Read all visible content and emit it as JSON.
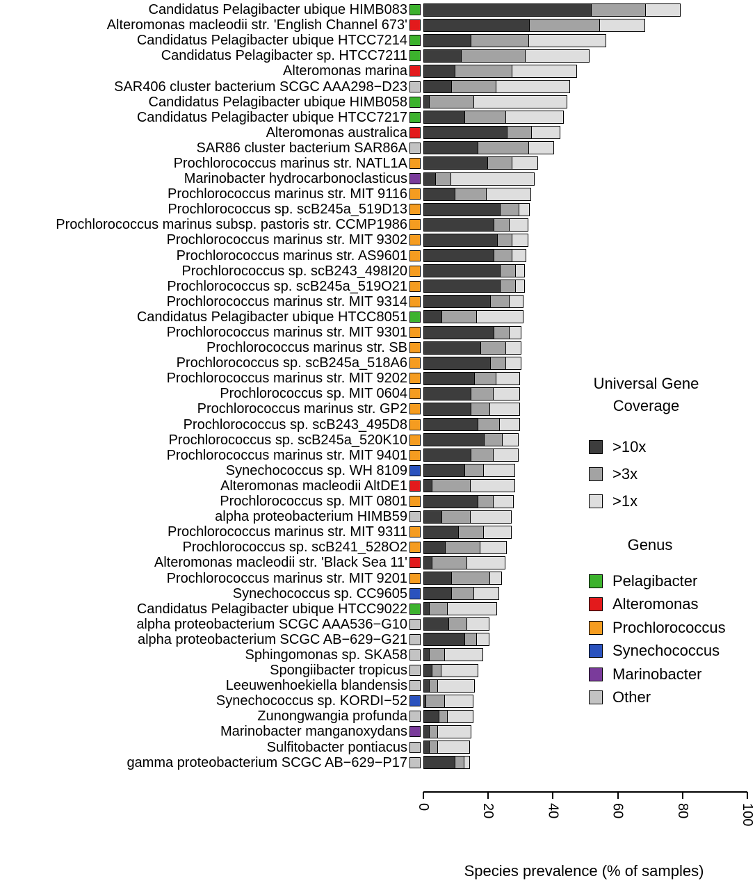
{
  "chart_data": {
    "type": "bar",
    "orientation": "horizontal",
    "stacked": true,
    "title": "",
    "xlabel": "Species prevalence (% of samples)",
    "xlim": [
      0,
      100
    ],
    "xticks": [
      0,
      20,
      40,
      60,
      80,
      100
    ],
    "series_names": [
      ">10x",
      ">3x",
      ">1x"
    ],
    "rows": [
      {
        "label": "Candidatus Pelagibacter ubique HIMB083",
        "genus": "Pelagibacter",
        "values": [
          52,
          17,
          11
        ]
      },
      {
        "label": "Alteromonas macleodii str. 'English Channel 673'",
        "genus": "Alteromonas",
        "values": [
          33,
          22,
          14
        ]
      },
      {
        "label": "Candidatus Pelagibacter ubique HTCC7214",
        "genus": "Pelagibacter",
        "values": [
          15,
          18,
          24
        ]
      },
      {
        "label": "Candidatus Pelagibacter sp. HTCC7211",
        "genus": "Pelagibacter",
        "values": [
          12,
          20,
          20
        ]
      },
      {
        "label": "Alteromonas marina",
        "genus": "Alteromonas",
        "values": [
          10,
          18,
          20
        ]
      },
      {
        "label": "SAR406 cluster bacterium SCGC AAA298−D23",
        "genus": "Other",
        "values": [
          9,
          14,
          23
        ]
      },
      {
        "label": "Candidatus Pelagibacter ubique HIMB058",
        "genus": "Pelagibacter",
        "values": [
          2,
          14,
          29
        ]
      },
      {
        "label": "Candidatus Pelagibacter ubique HTCC7217",
        "genus": "Pelagibacter",
        "values": [
          13,
          13,
          18
        ]
      },
      {
        "label": "Alteromonas australica",
        "genus": "Alteromonas",
        "values": [
          26,
          8,
          9
        ]
      },
      {
        "label": "SAR86 cluster bacterium SAR86A",
        "genus": "Other",
        "values": [
          17,
          16,
          8
        ]
      },
      {
        "label": "Prochlorococcus marinus str. NATL1A",
        "genus": "Prochlorococcus",
        "values": [
          20,
          8,
          8
        ]
      },
      {
        "label": "Marinobacter hydrocarbonoclasticus",
        "genus": "Marinobacter",
        "values": [
          4,
          5,
          26
        ]
      },
      {
        "label": "Prochlorococcus marinus str. MIT 9116",
        "genus": "Prochlorococcus",
        "values": [
          10,
          10,
          14
        ]
      },
      {
        "label": "Prochlorococcus sp. scB245a_519D13",
        "genus": "Prochlorococcus",
        "values": [
          24,
          6,
          3.5
        ]
      },
      {
        "label": "Prochlorococcus marinus subsp. pastoris str. CCMP1986",
        "genus": "Prochlorococcus",
        "values": [
          22,
          5,
          6
        ]
      },
      {
        "label": "Prochlorococcus marinus str. MIT 9302",
        "genus": "Prochlorococcus",
        "values": [
          23,
          5,
          5
        ]
      },
      {
        "label": "Prochlorococcus marinus str. AS9601",
        "genus": "Prochlorococcus",
        "values": [
          22,
          6,
          4.5
        ]
      },
      {
        "label": "Prochlorococcus sp. scB243_498I20",
        "genus": "Prochlorococcus",
        "values": [
          24,
          5,
          3
        ]
      },
      {
        "label": "Prochlorococcus sp. scB245a_519O21",
        "genus": "Prochlorococcus",
        "values": [
          24,
          5,
          3
        ]
      },
      {
        "label": "Prochlorococcus marinus str. MIT 9314",
        "genus": "Prochlorococcus",
        "values": [
          21,
          6,
          4.5
        ]
      },
      {
        "label": "Candidatus Pelagibacter ubique HTCC8051",
        "genus": "Pelagibacter",
        "values": [
          6,
          11,
          14.5
        ]
      },
      {
        "label": "Prochlorococcus marinus str. MIT 9301",
        "genus": "Prochlorococcus",
        "values": [
          22,
          5,
          4
        ]
      },
      {
        "label": "Prochlorococcus marinus str. SB",
        "genus": "Prochlorococcus",
        "values": [
          18,
          8,
          5
        ]
      },
      {
        "label": "Prochlorococcus sp. scB245a_518A6",
        "genus": "Prochlorococcus",
        "values": [
          21,
          5,
          5
        ]
      },
      {
        "label": "Prochlorococcus marinus str. MIT 9202",
        "genus": "Prochlorococcus",
        "values": [
          16,
          7,
          7.5
        ]
      },
      {
        "label": "Prochlorococcus sp. MIT 0604",
        "genus": "Prochlorococcus",
        "values": [
          15,
          7,
          8.5
        ]
      },
      {
        "label": "Prochlorococcus marinus str. GP2",
        "genus": "Prochlorococcus",
        "values": [
          15,
          6,
          9.5
        ]
      },
      {
        "label": "Prochlorococcus sp. scB243_495D8",
        "genus": "Prochlorococcus",
        "values": [
          17,
          7,
          6.5
        ]
      },
      {
        "label": "Prochlorococcus sp. scB245a_520K10",
        "genus": "Prochlorococcus",
        "values": [
          19,
          6,
          5
        ]
      },
      {
        "label": "Prochlorococcus marinus str. MIT 9401",
        "genus": "Prochlorococcus",
        "values": [
          15,
          7,
          8
        ]
      },
      {
        "label": "Synechococcus sp. WH 8109",
        "genus": "Synechococcus",
        "values": [
          13,
          6,
          10
        ]
      },
      {
        "label": "Alteromonas macleodii AltDE1",
        "genus": "Alteromonas",
        "values": [
          3,
          12,
          14
        ]
      },
      {
        "label": "Prochlorococcus sp. MIT 0801",
        "genus": "Prochlorococcus",
        "values": [
          17,
          5,
          6.5
        ]
      },
      {
        "label": "alpha proteobacterium HIMB59",
        "genus": "Other",
        "values": [
          6,
          9,
          13
        ]
      },
      {
        "label": "Prochlorococcus marinus str. MIT 9311",
        "genus": "Prochlorococcus",
        "values": [
          11,
          8,
          9
        ]
      },
      {
        "label": "Prochlorococcus sp. scB241_528O2",
        "genus": "Prochlorococcus",
        "values": [
          7,
          11,
          8.5
        ]
      },
      {
        "label": "Alteromonas macleodii str. 'Black Sea 11'",
        "genus": "Alteromonas",
        "values": [
          3,
          11,
          12
        ]
      },
      {
        "label": "Prochlorococcus marinus str. MIT 9201",
        "genus": "Prochlorococcus",
        "values": [
          9,
          12,
          4
        ]
      },
      {
        "label": "Synechococcus sp. CC9605",
        "genus": "Synechococcus",
        "values": [
          9,
          7,
          8
        ]
      },
      {
        "label": "Candidatus Pelagibacter ubique HTCC9022",
        "genus": "Pelagibacter",
        "values": [
          2,
          6,
          15.5
        ]
      },
      {
        "label": "alpha proteobacterium SCGC AAA536−G10",
        "genus": "Other",
        "values": [
          8,
          6,
          7
        ]
      },
      {
        "label": "alpha proteobacterium SCGC AB−629−G21",
        "genus": "Other",
        "values": [
          13,
          4,
          4
        ]
      },
      {
        "label": "Sphingomonas sp. SKA58",
        "genus": "Other",
        "values": [
          2,
          5,
          12
        ]
      },
      {
        "label": "Spongiibacter tropicus",
        "genus": "Other",
        "values": [
          3,
          3,
          11.5
        ]
      },
      {
        "label": "Leeuwenhoekiella blandensis",
        "genus": "Other",
        "values": [
          2,
          3,
          11.5
        ]
      },
      {
        "label": "Synechococcus sp. KORDI−52",
        "genus": "Synechococcus",
        "values": [
          1,
          6,
          9
        ]
      },
      {
        "label": "Zunongwangia profunda",
        "genus": "Other",
        "values": [
          5,
          3,
          8
        ]
      },
      {
        "label": "Marinobacter manganoxydans",
        "genus": "Marinobacter",
        "values": [
          2,
          3,
          10.5
        ]
      },
      {
        "label": "Sulfitobacter pontiacus",
        "genus": "Other",
        "values": [
          2,
          3,
          10
        ]
      },
      {
        "label": "gamma proteobacterium SCGC AB−629−P17",
        "genus": "Other",
        "values": [
          10,
          3,
          2
        ]
      }
    ]
  },
  "legend_coverage": {
    "title": "Universal Gene Coverage",
    "items": [
      {
        "label": ">10x",
        "color": "#3d3d3d"
      },
      {
        "label": ">3x",
        "color": "#a3a3a3"
      },
      {
        "label": ">1x",
        "color": "#dedede"
      }
    ]
  },
  "legend_genus": {
    "title": "Genus",
    "items": [
      {
        "label": "Pelagibacter",
        "color": "#3cb22d"
      },
      {
        "label": "Alteromonas",
        "color": "#e31a1c"
      },
      {
        "label": "Prochlorococcus",
        "color": "#f59c20"
      },
      {
        "label": "Synechococcus",
        "color": "#2a52be"
      },
      {
        "label": "Marinobacter",
        "color": "#7a3b9b"
      },
      {
        "label": "Other",
        "color": "#c3c3c3"
      }
    ]
  }
}
